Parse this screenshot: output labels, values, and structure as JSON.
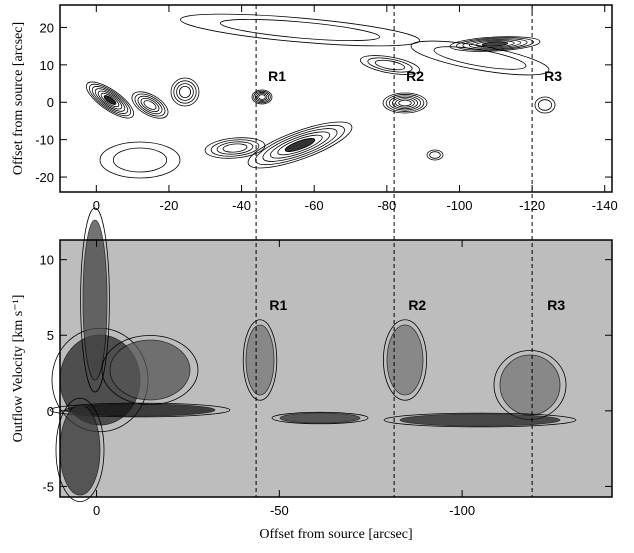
{
  "chart_data": [
    {
      "type": "contour",
      "ylabel": "Offset from source [arcsec]",
      "xlim": [
        10,
        -142
      ],
      "xticks": [
        0,
        -20,
        -40,
        -60,
        -80,
        -100,
        -120,
        -140
      ],
      "ylim": [
        -24,
        26
      ],
      "yticks": [
        -20,
        -10,
        0,
        10,
        20
      ],
      "annotations": [
        {
          "text": "R1",
          "x": -44,
          "y": 7
        },
        {
          "text": "R2",
          "x": -82,
          "y": 7
        },
        {
          "text": "R3",
          "x": -120,
          "y": 7
        }
      ]
    },
    {
      "type": "contour",
      "xlabel": "Offset from source [arcsec]",
      "ylabel": "Outflow Velocity  [km s⁻¹]",
      "xlim": [
        10,
        -141
      ],
      "xticks": [
        0,
        -50,
        -100
      ],
      "ylim": [
        -5.7,
        11.3
      ],
      "yticks": [
        -5,
        0,
        5,
        10
      ],
      "annotations": [
        {
          "text": "R1",
          "x": -44,
          "y": 7
        },
        {
          "text": "R2",
          "x": -82,
          "y": 7
        },
        {
          "text": "R3",
          "x": -120,
          "y": 7
        }
      ]
    }
  ]
}
